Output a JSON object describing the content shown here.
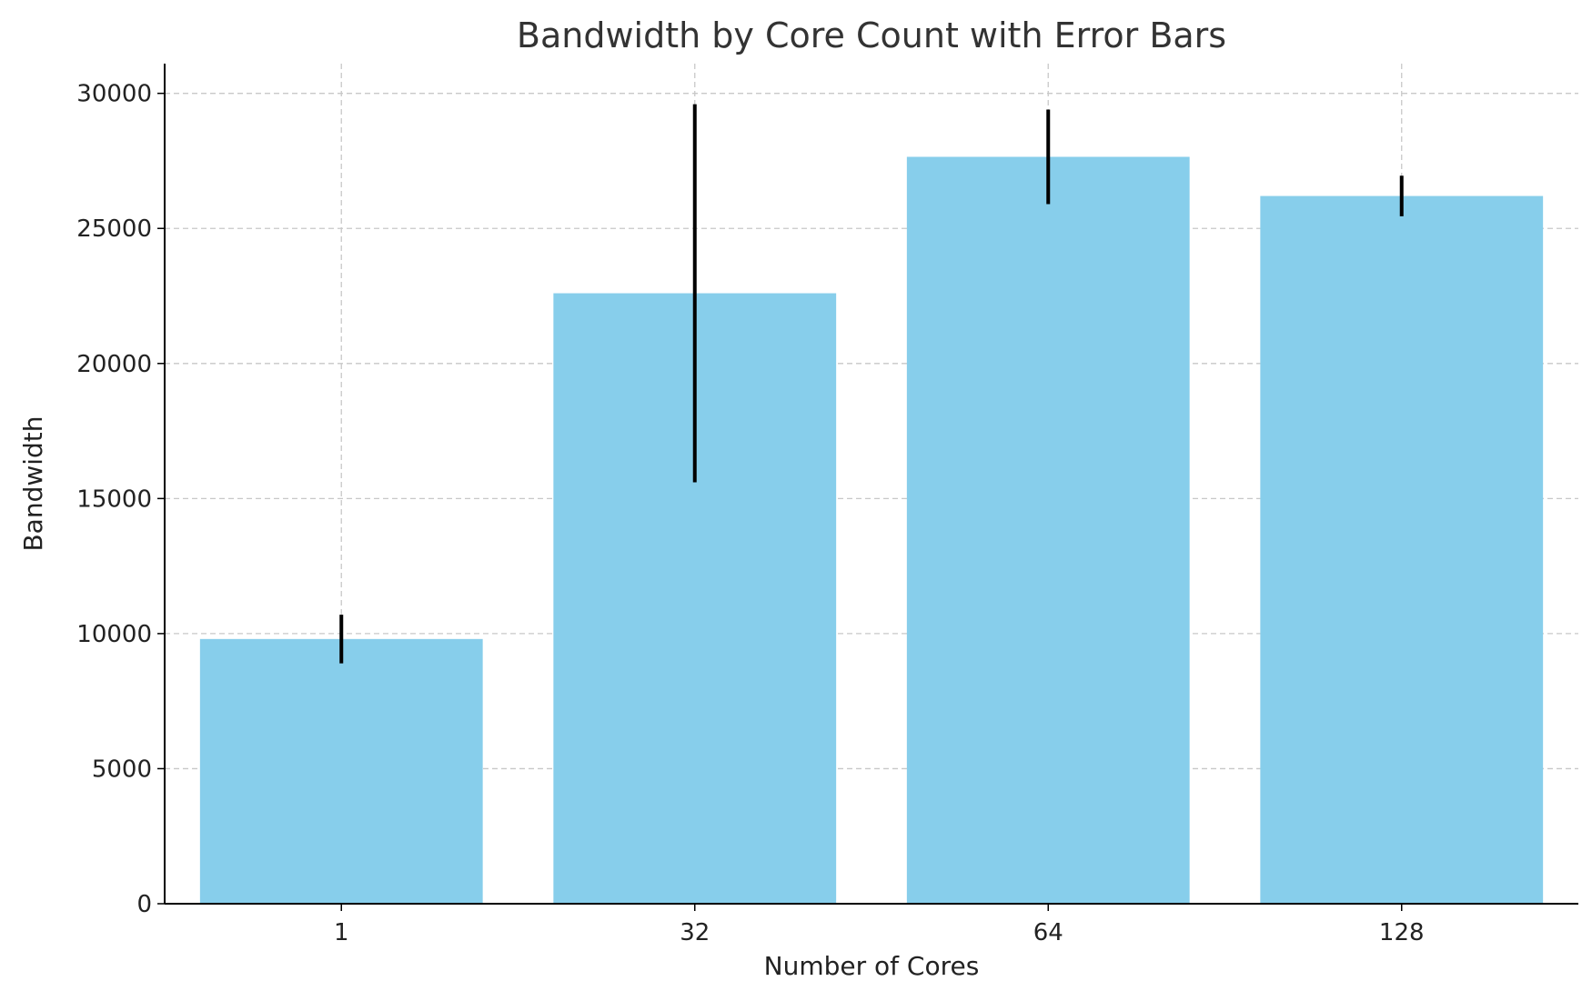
{
  "chart_data": {
    "type": "bar",
    "title": "Bandwidth by Core Count with Error Bars",
    "xlabel": "Number of Cores",
    "ylabel": "Bandwidth",
    "categories": [
      "1",
      "32",
      "64",
      "128"
    ],
    "values": [
      9800,
      22600,
      27650,
      26200
    ],
    "errors": [
      900,
      7000,
      1750,
      750
    ],
    "ylim": [
      0,
      31100
    ],
    "yticks": [
      0,
      5000,
      10000,
      15000,
      20000,
      25000,
      30000
    ],
    "grid": true,
    "bar_color": "#87ceeb",
    "error_color": "#000000"
  }
}
